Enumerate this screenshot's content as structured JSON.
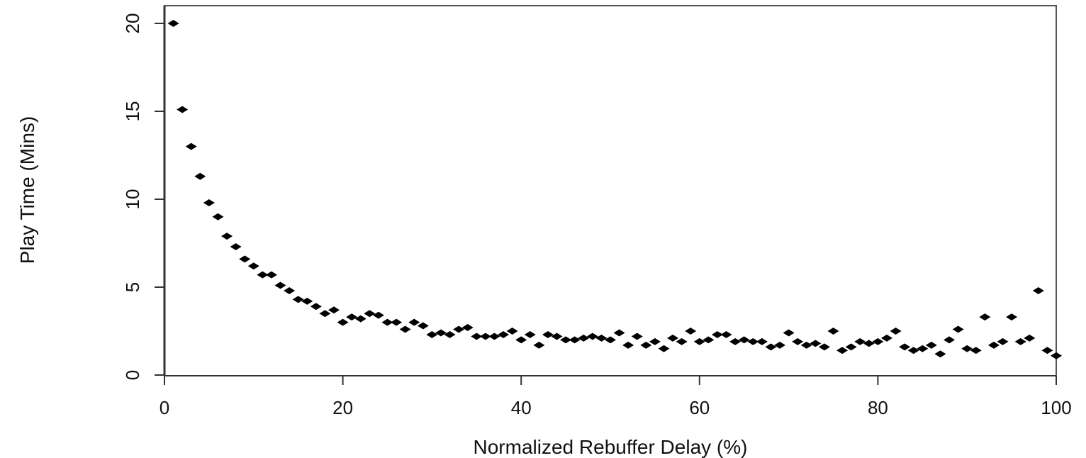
{
  "chart_data": {
    "type": "scatter",
    "title": "",
    "xlabel": "Normalized Rebuffer Delay (%)",
    "ylabel": "Play Time (Mins)",
    "xlim": [
      0,
      100
    ],
    "ylim": [
      0,
      20
    ],
    "x_ticks": [
      "0",
      "20",
      "40",
      "60",
      "80",
      "100"
    ],
    "y_ticks": [
      "0",
      "5",
      "10",
      "15",
      "20"
    ],
    "grid": false,
    "marker": "filled-diamond",
    "marker_color": "#000000",
    "points": [
      [
        1,
        20.0
      ],
      [
        2,
        15.1
      ],
      [
        3,
        13.0
      ],
      [
        4,
        11.3
      ],
      [
        5,
        9.8
      ],
      [
        6,
        9.0
      ],
      [
        7,
        7.9
      ],
      [
        8,
        7.3
      ],
      [
        9,
        6.6
      ],
      [
        10,
        6.2
      ],
      [
        11,
        5.7
      ],
      [
        12,
        5.7
      ],
      [
        13,
        5.1
      ],
      [
        14,
        4.8
      ],
      [
        15,
        4.3
      ],
      [
        16,
        4.2
      ],
      [
        17,
        3.9
      ],
      [
        18,
        3.5
      ],
      [
        19,
        3.7
      ],
      [
        20,
        3.0
      ],
      [
        21,
        3.3
      ],
      [
        22,
        3.2
      ],
      [
        23,
        3.5
      ],
      [
        24,
        3.4
      ],
      [
        25,
        3.0
      ],
      [
        26,
        3.0
      ],
      [
        27,
        2.6
      ],
      [
        28,
        3.0
      ],
      [
        29,
        2.8
      ],
      [
        30,
        2.3
      ],
      [
        31,
        2.4
      ],
      [
        32,
        2.3
      ],
      [
        33,
        2.6
      ],
      [
        34,
        2.7
      ],
      [
        35,
        2.2
      ],
      [
        36,
        2.2
      ],
      [
        37,
        2.2
      ],
      [
        38,
        2.3
      ],
      [
        39,
        2.5
      ],
      [
        40,
        2.0
      ],
      [
        41,
        2.3
      ],
      [
        42,
        1.7
      ],
      [
        43,
        2.3
      ],
      [
        44,
        2.2
      ],
      [
        45,
        2.0
      ],
      [
        46,
        2.0
      ],
      [
        47,
        2.1
      ],
      [
        48,
        2.2
      ],
      [
        49,
        2.1
      ],
      [
        50,
        2.0
      ],
      [
        51,
        2.4
      ],
      [
        52,
        1.7
      ],
      [
        53,
        2.2
      ],
      [
        54,
        1.7
      ],
      [
        55,
        1.9
      ],
      [
        56,
        1.5
      ],
      [
        57,
        2.1
      ],
      [
        58,
        1.9
      ],
      [
        59,
        2.5
      ],
      [
        60,
        1.9
      ],
      [
        61,
        2.0
      ],
      [
        62,
        2.3
      ],
      [
        63,
        2.3
      ],
      [
        64,
        1.9
      ],
      [
        65,
        2.0
      ],
      [
        66,
        1.9
      ],
      [
        67,
        1.9
      ],
      [
        68,
        1.6
      ],
      [
        69,
        1.7
      ],
      [
        70,
        2.4
      ],
      [
        71,
        1.9
      ],
      [
        72,
        1.7
      ],
      [
        73,
        1.8
      ],
      [
        74,
        1.6
      ],
      [
        75,
        2.5
      ],
      [
        76,
        1.4
      ],
      [
        77,
        1.6
      ],
      [
        78,
        1.9
      ],
      [
        79,
        1.8
      ],
      [
        80,
        1.9
      ],
      [
        81,
        2.1
      ],
      [
        82,
        2.5
      ],
      [
        83,
        1.6
      ],
      [
        84,
        1.4
      ],
      [
        85,
        1.5
      ],
      [
        86,
        1.7
      ],
      [
        87,
        1.2
      ],
      [
        88,
        2.0
      ],
      [
        89,
        2.6
      ],
      [
        90,
        1.5
      ],
      [
        91,
        1.4
      ],
      [
        92,
        3.3
      ],
      [
        93,
        1.7
      ],
      [
        94,
        1.9
      ],
      [
        95,
        3.3
      ],
      [
        96,
        1.9
      ],
      [
        97,
        2.1
      ],
      [
        98,
        4.8
      ],
      [
        99,
        1.4
      ],
      [
        100,
        1.1
      ]
    ]
  }
}
